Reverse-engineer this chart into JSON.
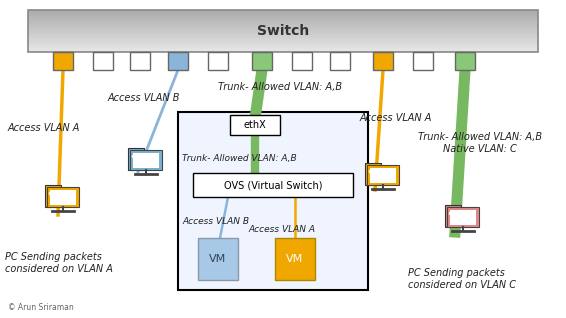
{
  "bg_color": "#ffffff",
  "switch_color_top": "#e0e0e0",
  "switch_color_bot": "#b0b0b0",
  "switch_border": "#888888",
  "port_colors": [
    "orange",
    "white",
    "white",
    "blue",
    "white",
    "green",
    "white",
    "white",
    "orange",
    "white",
    "green"
  ],
  "color_map": {
    "orange": "#f0a800",
    "white": "#ffffff",
    "blue": "#8ab4d8",
    "green": "#88c878"
  },
  "line_orange": "#f0a800",
  "line_blue": "#8ab4d8",
  "line_green": "#78b860",
  "vm_blue": "#a8c8e8",
  "vm_orange": "#f0a800",
  "pc_orange": "#f0a800",
  "pc_blue": "#7ab0d0",
  "pc_red": "#e08888",
  "text_color": "#000000",
  "italic_color": "#222222",
  "labels": {
    "switch": "Switch",
    "access_vlan_a_left": "Access VLAN A",
    "access_vlan_b": "Access VLAN B",
    "trunk_ab_top": "Trunk- Allowed VLAN: A,B",
    "access_vlan_a_right": "Access VLAN A",
    "trunk_ab_native": "Trunk- Allowed VLAN: A,B\nNative VLAN: C",
    "ethX": "ethX",
    "trunk_ab_inner": "Trunk- Allowed VLAN: A,B",
    "ovs": "OVS (Virtual Switch)",
    "access_vlan_b_inner": "Access VLAN B",
    "access_vlan_a_inner": "Access VLAN A",
    "vm_left": "VM",
    "vm_right": "VM",
    "pc_left_text": "PC Sending packets\nconsidered on VLAN A",
    "pc_right_text": "PC Sending packets\nconsidered on VLAN C",
    "copyright": "© Arun Sriraman"
  }
}
